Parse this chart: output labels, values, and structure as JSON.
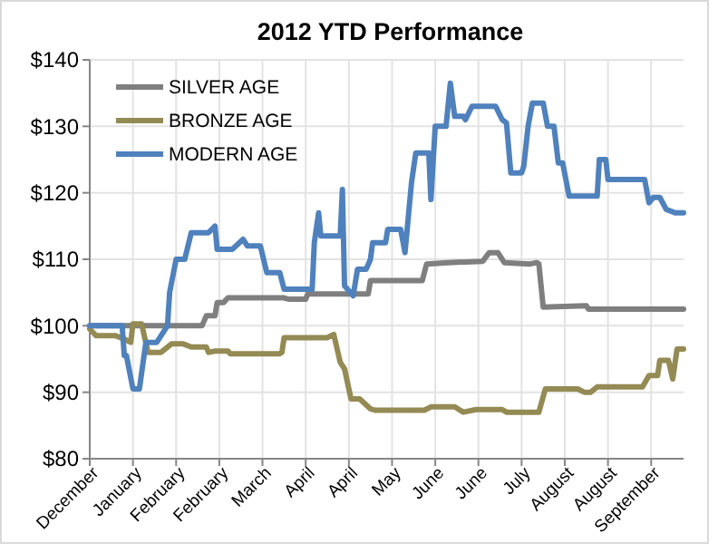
{
  "chart_data": {
    "type": "line",
    "title": "2012 YTD Performance",
    "xlim": [
      "2011-12-31",
      "2012-10-01"
    ],
    "xticks": [
      {
        "value": "2011-12-31",
        "label": "December"
      },
      {
        "value": "2012-01-20",
        "label": "January"
      },
      {
        "value": "2012-02-09",
        "label": "February"
      },
      {
        "value": "2012-02-29",
        "label": "February"
      },
      {
        "value": "2012-03-20",
        "label": "March"
      },
      {
        "value": "2012-04-09",
        "label": "April"
      },
      {
        "value": "2012-04-29",
        "label": "April"
      },
      {
        "value": "2012-05-19",
        "label": "May"
      },
      {
        "value": "2012-06-08",
        "label": "June"
      },
      {
        "value": "2012-06-28",
        "label": "June"
      },
      {
        "value": "2012-07-18",
        "label": "July"
      },
      {
        "value": "2012-08-07",
        "label": "August"
      },
      {
        "value": "2012-08-27",
        "label": "August"
      },
      {
        "value": "2012-09-16",
        "label": "September"
      }
    ],
    "ylim": [
      80,
      140
    ],
    "yticks": [
      {
        "value": 80,
        "label": "$80"
      },
      {
        "value": 90,
        "label": "$90"
      },
      {
        "value": 100,
        "label": "$100"
      },
      {
        "value": 110,
        "label": "$110"
      },
      {
        "value": 120,
        "label": "$120"
      },
      {
        "value": 130,
        "label": "$130"
      },
      {
        "value": 140,
        "label": "$140"
      }
    ],
    "grid": true,
    "legend": "top left",
    "line_style": "solid",
    "series": [
      {
        "name": "SILVER AGE",
        "color": "#7f7f7f",
        "x": [
          "2011-12-31",
          "2012-02-21",
          "2012-02-23",
          "2012-02-27",
          "2012-02-28",
          "2012-03-02",
          "2012-03-04",
          "2012-03-30",
          "2012-04-01",
          "2012-04-09",
          "2012-04-10",
          "2012-05-08",
          "2012-05-09",
          "2012-06-02",
          "2012-06-04",
          "2012-06-14",
          "2012-06-30",
          "2012-07-03",
          "2012-07-07",
          "2012-07-10",
          "2012-07-22",
          "2012-07-25",
          "2012-07-26",
          "2012-07-28",
          "2012-08-17",
          "2012-08-18",
          "2012-10-01"
        ],
        "values": [
          100,
          100,
          101.5,
          101.5,
          103.5,
          103.5,
          104.2,
          104.2,
          104,
          104,
          104.8,
          104.8,
          106.8,
          106.8,
          109.3,
          109.5,
          109.7,
          111,
          111,
          109.5,
          109.3,
          109.5,
          109.3,
          102.8,
          103,
          102.5,
          102.5
        ]
      },
      {
        "name": "BRONZE AGE",
        "color": "#948a54",
        "x": [
          "2011-12-31",
          "2012-01-03",
          "2012-01-12",
          "2012-01-16",
          "2012-01-19",
          "2012-01-20",
          "2012-01-24",
          "2012-01-27",
          "2012-02-02",
          "2012-02-07",
          "2012-02-12",
          "2012-02-16",
          "2012-02-23",
          "2012-02-24",
          "2012-02-27",
          "2012-03-04",
          "2012-03-05",
          "2012-03-28",
          "2012-03-29",
          "2012-03-30",
          "2012-04-19",
          "2012-04-22",
          "2012-04-25",
          "2012-04-27",
          "2012-04-30",
          "2012-05-04",
          "2012-05-09",
          "2012-05-11",
          "2012-06-03",
          "2012-06-06",
          "2012-06-17",
          "2012-06-21",
          "2012-06-27",
          "2012-07-09",
          "2012-07-11",
          "2012-07-26",
          "2012-07-29",
          "2012-08-13",
          "2012-08-16",
          "2012-08-19",
          "2012-08-22",
          "2012-09-12",
          "2012-09-15",
          "2012-09-19",
          "2012-09-20",
          "2012-09-24",
          "2012-09-26",
          "2012-09-28",
          "2012-10-01"
        ],
        "values": [
          99.5,
          98.5,
          98.5,
          98,
          97.5,
          100.3,
          100.3,
          96,
          96,
          97.3,
          97.3,
          96.8,
          96.8,
          96,
          96.2,
          96.2,
          95.8,
          95.8,
          96,
          98.2,
          98.2,
          98.7,
          94.5,
          93.5,
          89,
          89,
          87.5,
          87.3,
          87.3,
          87.8,
          87.8,
          87,
          87.4,
          87.4,
          87,
          87,
          90.5,
          90.5,
          90,
          90,
          90.8,
          90.8,
          92.5,
          92.5,
          94.8,
          94.8,
          92,
          96.5,
          96.5
        ]
      },
      {
        "name": "MODERN AGE",
        "color": "#4f81bd",
        "x": [
          "2011-12-31",
          "2012-01-15",
          "2012-01-16",
          "2012-01-17",
          "2012-01-20",
          "2012-01-23",
          "2012-01-26",
          "2012-01-31",
          "2012-02-02",
          "2012-02-05",
          "2012-02-06",
          "2012-02-09",
          "2012-02-13",
          "2012-02-16",
          "2012-02-24",
          "2012-02-27",
          "2012-02-28",
          "2012-03-06",
          "2012-03-11",
          "2012-03-13",
          "2012-03-19",
          "2012-03-22",
          "2012-03-28",
          "2012-03-30",
          "2012-04-12",
          "2012-04-13",
          "2012-04-15",
          "2012-04-16",
          "2012-04-25",
          "2012-04-26",
          "2012-04-27",
          "2012-05-01",
          "2012-05-03",
          "2012-05-07",
          "2012-05-09",
          "2012-05-10",
          "2012-05-16",
          "2012-05-17",
          "2012-05-23",
          "2012-05-25",
          "2012-05-28",
          "2012-05-30",
          "2012-06-05",
          "2012-06-06",
          "2012-06-08",
          "2012-06-13",
          "2012-06-15",
          "2012-06-17",
          "2012-06-21",
          "2012-06-22",
          "2012-06-25",
          "2012-07-06",
          "2012-07-09",
          "2012-07-11",
          "2012-07-13",
          "2012-07-18",
          "2012-07-19",
          "2012-07-21",
          "2012-07-23",
          "2012-07-28",
          "2012-07-30",
          "2012-08-02",
          "2012-08-04",
          "2012-08-06",
          "2012-08-09",
          "2012-08-22",
          "2012-08-23",
          "2012-08-26",
          "2012-08-27",
          "2012-09-13",
          "2012-09-15",
          "2012-09-17",
          "2012-09-20",
          "2012-09-23",
          "2012-09-27",
          "2012-10-01"
        ],
        "values": [
          100,
          100,
          95.5,
          95.5,
          90.5,
          90.5,
          97.5,
          97.5,
          98.5,
          100,
          105,
          110,
          110,
          114,
          114,
          115,
          111.5,
          111.5,
          113,
          112,
          112,
          108,
          108,
          105.5,
          105.5,
          112.5,
          117,
          113.5,
          113.5,
          120.5,
          106,
          104.5,
          108.5,
          108.5,
          110,
          112.5,
          112.5,
          114.5,
          114.5,
          111,
          121.5,
          126,
          126,
          119,
          130,
          130,
          136.5,
          131.5,
          131.5,
          131,
          133,
          133,
          131,
          130.5,
          123,
          123,
          124,
          130,
          133.5,
          133.5,
          130,
          130,
          124.5,
          124.5,
          119.5,
          119.5,
          125,
          125,
          122,
          122,
          118.5,
          119.3,
          119.3,
          117.5,
          117,
          117
        ]
      }
    ]
  }
}
